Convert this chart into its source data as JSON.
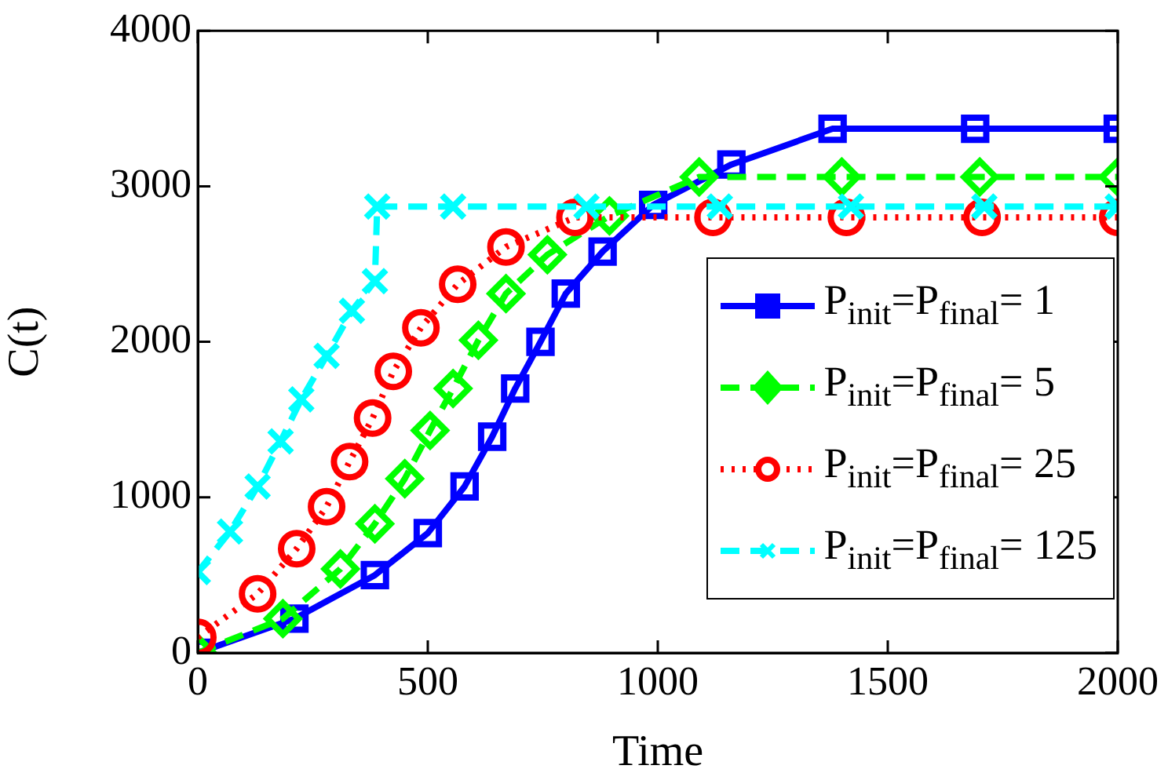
{
  "chart_data": {
    "type": "line",
    "xlabel": "Time",
    "ylabel": "C(t)",
    "xlim": [
      0,
      2000
    ],
    "ylim": [
      0,
      4000
    ],
    "xticks": [
      0,
      500,
      1000,
      1500,
      2000
    ],
    "yticks": [
      0,
      1000,
      2000,
      3000,
      4000
    ],
    "grid": false,
    "legend": "right",
    "series": [
      {
        "name": "P$_{init}$=P$_{final}$= 1",
        "color": "#0000ff",
        "marker": "square",
        "line_style": "solid",
        "x": [
          0,
          210,
          385,
          500,
          580,
          640,
          690,
          745,
          800,
          880,
          990,
          1160,
          1380,
          1690,
          2000
        ],
        "values": [
          0,
          220,
          500,
          770,
          1070,
          1390,
          1700,
          2000,
          2310,
          2580,
          2880,
          3140,
          3370,
          3370,
          3370
        ]
      },
      {
        "name": "P$_{init}$=P$_{final}$= 5",
        "color": "#00ff00",
        "marker": "diamond",
        "line_style": "dashed",
        "x": [
          0,
          185,
          310,
          385,
          450,
          505,
          555,
          610,
          670,
          760,
          895,
          1090,
          1400,
          1700,
          2000
        ],
        "values": [
          0,
          220,
          540,
          830,
          1120,
          1430,
          1700,
          2010,
          2310,
          2560,
          2810,
          3060,
          3060,
          3060,
          3060
        ]
      },
      {
        "name": "P$_{init}$=P$_{final}$= 25",
        "color": "#ff0000",
        "marker": "circle",
        "line_style": "dotted",
        "x": [
          0,
          130,
          215,
          280,
          330,
          380,
          425,
          485,
          565,
          670,
          820,
          1120,
          1410,
          1705,
          2000
        ],
        "values": [
          100,
          380,
          670,
          940,
          1230,
          1510,
          1810,
          2090,
          2370,
          2610,
          2800,
          2800,
          2800,
          2800,
          2800
        ]
      },
      {
        "name": "P$_{init}$=P$_{final}$= 125",
        "color": "#00ffff",
        "marker": "cross",
        "line_style": "dashed",
        "x": [
          0,
          70,
          130,
          180,
          225,
          280,
          335,
          385,
          390,
          555,
          845,
          1135,
          1420,
          1710,
          2000
        ],
        "values": [
          520,
          780,
          1070,
          1360,
          1630,
          1910,
          2200,
          2390,
          2870,
          2870,
          2870,
          2870,
          2870,
          2870,
          2870
        ]
      }
    ]
  }
}
